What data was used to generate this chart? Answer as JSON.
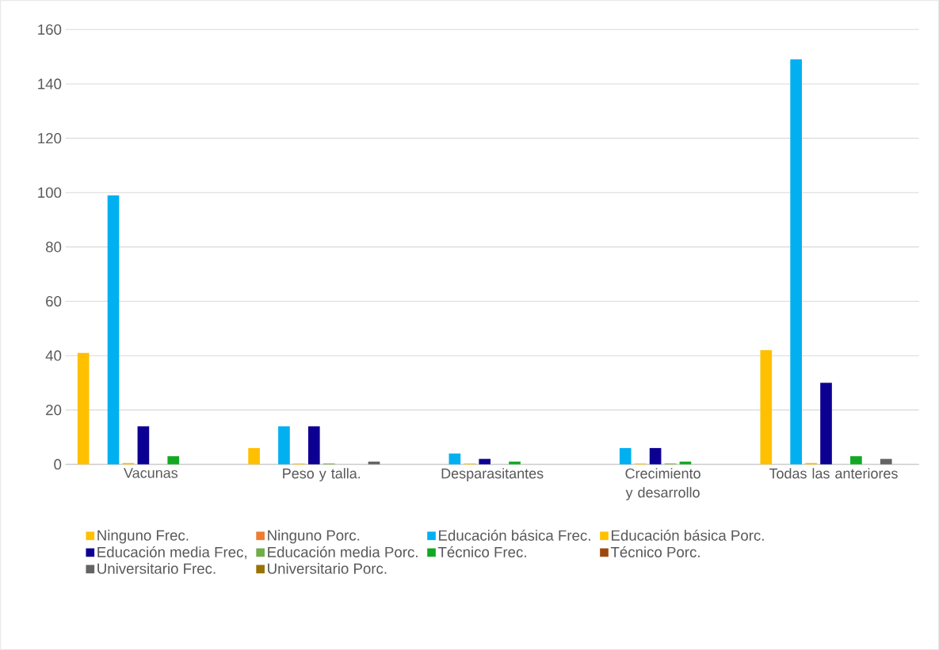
{
  "chart_data": {
    "type": "bar",
    "categories": [
      "Vacunas",
      "Peso y talla.",
      "Desparasitantes",
      "Crecimiento y desarrollo",
      "Todas las anteriores"
    ],
    "series": [
      {
        "name": "Ninguno Frec.",
        "color": "#ffc000",
        "values": [
          41,
          6,
          0,
          0,
          42
        ]
      },
      {
        "name": "Ninguno Porc.",
        "color": "#ed7d31",
        "values": [
          0,
          0,
          0,
          0,
          0
        ]
      },
      {
        "name": "Educación básica Frec.",
        "color": "#00b0f0",
        "values": [
          99,
          14,
          4,
          6,
          149
        ]
      },
      {
        "name": "Educación básica Porc.",
        "color": "#ffc000",
        "values": [
          0.5,
          0.3,
          0.3,
          0.3,
          0.5
        ]
      },
      {
        "name": "Educación media Frec,",
        "color": "#0c0093",
        "values": [
          14,
          14,
          2,
          6,
          30
        ]
      },
      {
        "name": "Educación media Porc.",
        "color": "#70ad47",
        "values": [
          0,
          0.3,
          0,
          0.3,
          0
        ]
      },
      {
        "name": "Técnico Frec.",
        "color": "#12a823",
        "values": [
          3,
          0,
          1,
          1,
          3
        ]
      },
      {
        "name": "Técnico Porc.",
        "color": "#9e480e",
        "values": [
          0,
          0,
          0,
          0,
          0
        ]
      },
      {
        "name": "Universitario Frec.",
        "color": "#636363",
        "values": [
          0,
          1,
          0,
          0,
          2
        ]
      },
      {
        "name": "Universitario Porc.",
        "color": "#997300",
        "values": [
          0,
          0,
          0,
          0,
          0
        ]
      }
    ],
    "ylim": [
      0,
      160
    ],
    "yticks": [
      0,
      20,
      40,
      60,
      80,
      100,
      120,
      140,
      160
    ],
    "grid": "y",
    "legend": "bottom"
  }
}
